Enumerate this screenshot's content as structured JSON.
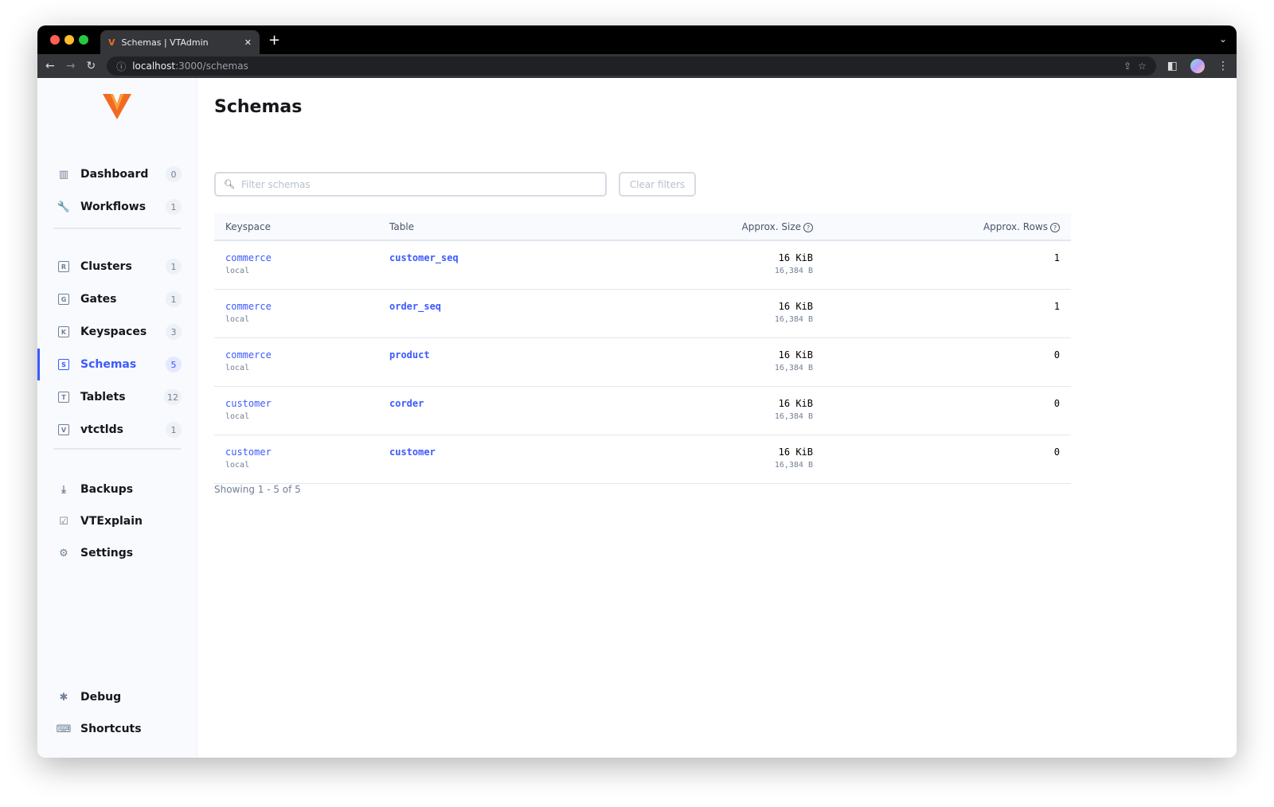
{
  "browser": {
    "tab_title": "Schemas | VTAdmin",
    "url_host": "localhost",
    "url_path": ":3000/schemas"
  },
  "sidebar": {
    "items": [
      {
        "label": "Dashboard",
        "icon": "chart-icon",
        "glyph": "▥",
        "count": "0"
      },
      {
        "label": "Workflows",
        "icon": "wrench-icon",
        "glyph": "🔧",
        "count": "1"
      },
      {
        "label": "Clusters",
        "icon": "cluster-icon",
        "glyph": "R",
        "count": "1"
      },
      {
        "label": "Gates",
        "icon": "gate-icon",
        "glyph": "G",
        "count": "1"
      },
      {
        "label": "Keyspaces",
        "icon": "keyspace-icon",
        "glyph": "K",
        "count": "3"
      },
      {
        "label": "Schemas",
        "icon": "schema-icon",
        "glyph": "S",
        "count": "5",
        "active": true
      },
      {
        "label": "Tablets",
        "icon": "tablet-icon",
        "glyph": "T",
        "count": "12"
      },
      {
        "label": "vtctlds",
        "icon": "vtctld-icon",
        "glyph": "V",
        "count": "1"
      },
      {
        "label": "Backups",
        "icon": "download-icon",
        "glyph": "⤓"
      },
      {
        "label": "VTExplain",
        "icon": "checklist-icon",
        "glyph": "☑"
      },
      {
        "label": "Settings",
        "icon": "gear-icon",
        "glyph": "⚙"
      },
      {
        "label": "Debug",
        "icon": "bug-icon",
        "glyph": "✱"
      },
      {
        "label": "Shortcuts",
        "icon": "keyboard-icon",
        "glyph": "⌨"
      }
    ]
  },
  "page": {
    "title": "Schemas",
    "filter_placeholder": "Filter schemas",
    "clear_label": "Clear filters",
    "footer": "Showing 1 - 5 of 5"
  },
  "table": {
    "headers": [
      "Keyspace",
      "Table",
      "Approx. Size",
      "Approx. Rows"
    ],
    "rows": [
      {
        "keyspace": "commerce",
        "cluster": "local",
        "table": "customer_seq",
        "size": "16 KiB",
        "bytes": "16,384 B",
        "rows": "1"
      },
      {
        "keyspace": "commerce",
        "cluster": "local",
        "table": "order_seq",
        "size": "16 KiB",
        "bytes": "16,384 B",
        "rows": "1"
      },
      {
        "keyspace": "commerce",
        "cluster": "local",
        "table": "product",
        "size": "16 KiB",
        "bytes": "16,384 B",
        "rows": "0"
      },
      {
        "keyspace": "customer",
        "cluster": "local",
        "table": "corder",
        "size": "16 KiB",
        "bytes": "16,384 B",
        "rows": "0"
      },
      {
        "keyspace": "customer",
        "cluster": "local",
        "table": "customer",
        "size": "16 KiB",
        "bytes": "16,384 B",
        "rows": "0"
      }
    ]
  },
  "colors": {
    "accent": "#3d5afe",
    "logo": "#f26b21"
  }
}
